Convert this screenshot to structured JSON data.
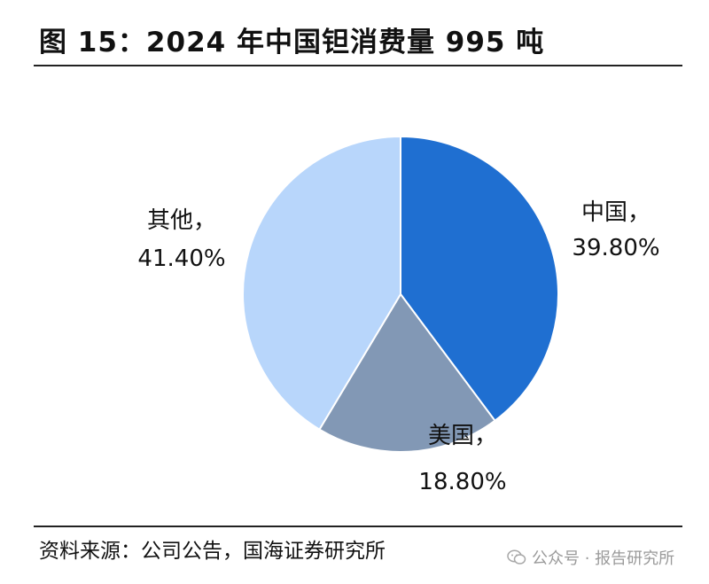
{
  "header": {
    "title": "图 15：2024 年中国钽消费量 995 吨"
  },
  "chart_data": {
    "type": "pie",
    "title": "图 15：2024 年中国钽消费量 995 吨",
    "unit": "%",
    "slices": [
      {
        "name": "中国",
        "value": 39.8,
        "label_name": "中国，",
        "label_value": "39.80%",
        "color": "#1f6fd1"
      },
      {
        "name": "美国",
        "value": 18.8,
        "label_name": "美国，",
        "label_value": "18.80%",
        "color": "#8298b5"
      },
      {
        "name": "其他",
        "value": 41.4,
        "label_name": "其他，",
        "label_value": "41.40%",
        "color": "#b8d6fb"
      }
    ],
    "legend": "none"
  },
  "footer": {
    "source": "资料来源：公司公告，国海证券研究所",
    "watermark": "公众号 · 报告研究所",
    "watermark_icon": "wechat-icon"
  }
}
